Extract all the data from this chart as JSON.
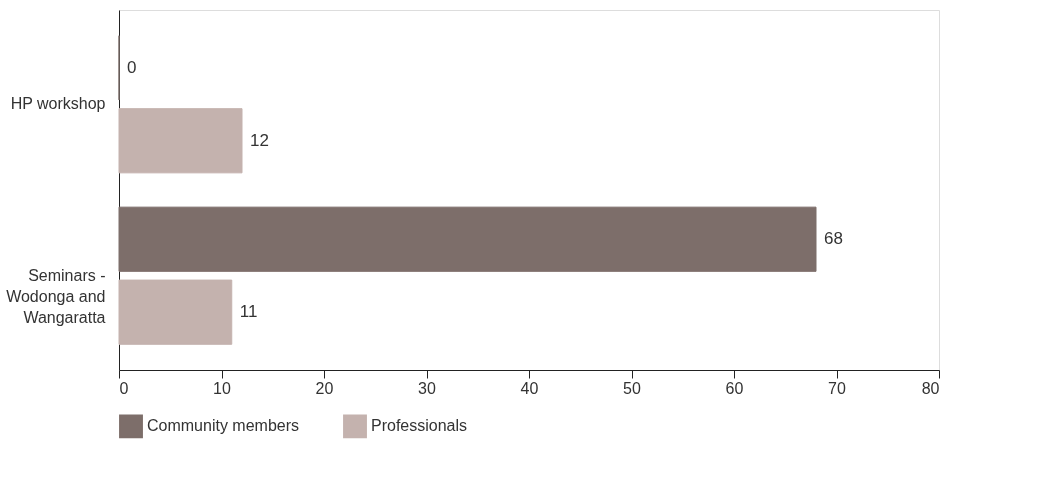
{
  "chart_data": {
    "type": "bar",
    "orientation": "horizontal",
    "categories": [
      "HP workshop",
      "Seminars - Wodonga and Wangaratta"
    ],
    "series": [
      {
        "name": "Community members",
        "color": "#7d6e6a",
        "values": [
          0,
          68
        ]
      },
      {
        "name": "Professionals",
        "color": "#c4b2ae",
        "values": [
          12,
          11
        ]
      }
    ],
    "xlim": [
      0,
      80
    ],
    "xticks": [
      0,
      10,
      20,
      30,
      40,
      50,
      60,
      70,
      80
    ],
    "grid": false,
    "legend": "bottom",
    "data_labels": true
  }
}
